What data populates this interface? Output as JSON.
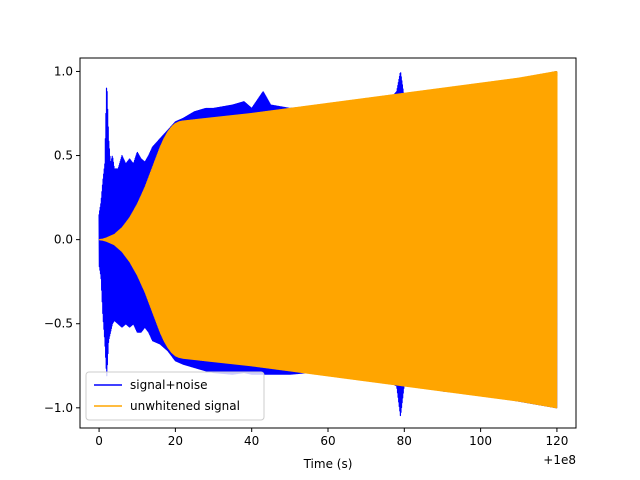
{
  "chart_data": {
    "type": "line",
    "title": "",
    "xlabel": "Time (s)",
    "ylabel": "",
    "x_offset_label": "+1e8",
    "xlim": [
      -5,
      125
    ],
    "ylim": [
      -1.12,
      1.08
    ],
    "xticks": [
      0,
      20,
      40,
      60,
      80,
      100,
      120
    ],
    "yticks": [
      -1.0,
      -0.5,
      0.0,
      0.5,
      1.0
    ],
    "xtick_labels": [
      "0",
      "20",
      "40",
      "60",
      "80",
      "100",
      "120"
    ],
    "ytick_labels": [
      "−1.0",
      "−0.5",
      "0.0",
      "0.5",
      "1.0"
    ],
    "grid": false,
    "legend_position": "lower-left",
    "series": [
      {
        "name": "signal+noise",
        "color": "#0000ff",
        "envelope": {
          "x": [
            0,
            0.5,
            1,
            1.5,
            2,
            2.5,
            3,
            3.5,
            4,
            5,
            6,
            7,
            8,
            9,
            10,
            11,
            12,
            13,
            14,
            16,
            18,
            20,
            22,
            25,
            28,
            30,
            35,
            38,
            40,
            43,
            45,
            50,
            55,
            60,
            65,
            70,
            75,
            78,
            79,
            80,
            85,
            90,
            100,
            110,
            120
          ],
          "upper": [
            0.15,
            0.22,
            0.35,
            0.45,
            0.95,
            0.6,
            0.45,
            0.5,
            0.42,
            0.42,
            0.5,
            0.45,
            0.48,
            0.45,
            0.52,
            0.48,
            0.46,
            0.5,
            0.55,
            0.6,
            0.65,
            0.7,
            0.72,
            0.76,
            0.78,
            0.78,
            0.8,
            0.82,
            0.78,
            0.88,
            0.8,
            0.78,
            0.79,
            0.78,
            0.79,
            0.79,
            0.8,
            0.88,
            1.0,
            0.84,
            0.84,
            0.87,
            0.9,
            0.95,
            1.0
          ],
          "lower": [
            -0.15,
            -0.22,
            -0.45,
            -0.6,
            -0.82,
            -0.6,
            -0.55,
            -0.5,
            -0.48,
            -0.5,
            -0.52,
            -0.5,
            -0.52,
            -0.5,
            -0.55,
            -0.55,
            -0.52,
            -0.55,
            -0.6,
            -0.62,
            -0.66,
            -0.72,
            -0.74,
            -0.76,
            -0.78,
            -0.79,
            -0.8,
            -0.79,
            -0.8,
            -0.8,
            -0.8,
            -0.8,
            -0.79,
            -0.8,
            -0.81,
            -0.82,
            -0.83,
            -0.87,
            -1.05,
            -0.86,
            -0.86,
            -0.9,
            -0.92,
            -0.96,
            -1.0
          ]
        }
      },
      {
        "name": "unwhitened signal",
        "color": "#ffa500",
        "envelope": {
          "x": [
            0,
            1,
            2,
            3,
            4,
            5,
            6,
            7,
            8,
            9,
            10,
            11,
            12,
            13,
            14,
            15,
            16,
            17,
            18,
            19,
            20,
            21,
            22,
            24,
            26,
            28,
            30,
            40,
            50,
            60,
            70,
            80,
            90,
            100,
            110,
            120
          ],
          "upper": [
            0.0,
            0.003,
            0.01,
            0.02,
            0.03,
            0.05,
            0.07,
            0.1,
            0.13,
            0.17,
            0.21,
            0.26,
            0.31,
            0.37,
            0.43,
            0.49,
            0.55,
            0.6,
            0.64,
            0.67,
            0.69,
            0.7,
            0.705,
            0.71,
            0.715,
            0.72,
            0.725,
            0.75,
            0.78,
            0.81,
            0.84,
            0.87,
            0.9,
            0.93,
            0.96,
            1.0
          ],
          "lower": [
            0.0,
            -0.003,
            -0.01,
            -0.02,
            -0.03,
            -0.05,
            -0.07,
            -0.1,
            -0.13,
            -0.17,
            -0.21,
            -0.26,
            -0.31,
            -0.37,
            -0.43,
            -0.49,
            -0.55,
            -0.6,
            -0.64,
            -0.67,
            -0.69,
            -0.7,
            -0.705,
            -0.71,
            -0.715,
            -0.72,
            -0.725,
            -0.75,
            -0.78,
            -0.81,
            -0.84,
            -0.87,
            -0.9,
            -0.93,
            -0.96,
            -1.0
          ]
        }
      }
    ]
  }
}
